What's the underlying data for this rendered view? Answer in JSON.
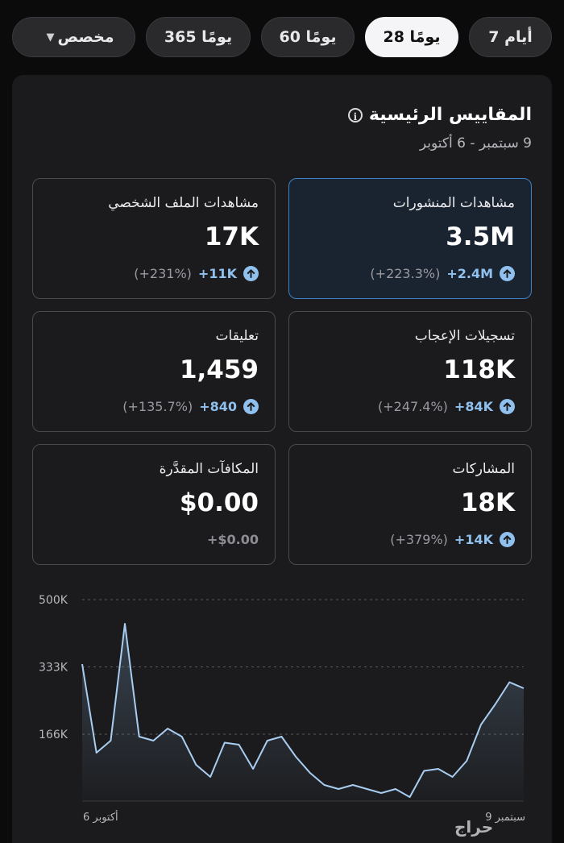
{
  "tabs": [
    {
      "label": "7 أيام",
      "active": false
    },
    {
      "label": "28 يومًا",
      "active": true
    },
    {
      "label": "60 يومًا",
      "active": false
    },
    {
      "label": "365 يومًا",
      "active": false
    },
    {
      "label": "مخصص",
      "active": false,
      "dropdown": true
    }
  ],
  "header": {
    "title": "المقاييس الرئيسية",
    "date_range": "9 سبتمبر - 6 أكتوبر"
  },
  "metrics": {
    "post_views": {
      "label": "مشاهدات المنشورات",
      "value": "3.5M",
      "delta": "+2.4M",
      "pct": "(+223.3%)"
    },
    "profile_views": {
      "label": "مشاهدات الملف الشخصي",
      "value": "17K",
      "delta": "+11K",
      "pct": "(+231%)"
    },
    "likes": {
      "label": "تسجيلات الإعجاب",
      "value": "118K",
      "delta": "+84K",
      "pct": "(+247.4%)"
    },
    "comments": {
      "label": "تعليقات",
      "value": "1,459",
      "delta": "+840",
      "pct": "(+135.7%)"
    },
    "shares": {
      "label": "المشاركات",
      "value": "18K",
      "delta": "+14K",
      "pct": "(+379%)"
    },
    "rewards": {
      "label": "المكافآت المقدَّرة",
      "value": "$0.00",
      "delta": "+$0.00"
    }
  },
  "colors": {
    "accent": "#8fc0ee",
    "selected_border": "#3d82c8",
    "line": "#a8cdf0"
  },
  "chart_data": {
    "type": "area",
    "y_ticks": [
      "500K",
      "333K",
      "166K"
    ],
    "ylim": [
      0,
      500000
    ],
    "x_start_label": "9 سبتمبر",
    "x_end_label": "6 أكتوبر",
    "x_direction": "right-to-left",
    "grid": true,
    "values": [
      340000,
      120000,
      150000,
      440000,
      160000,
      150000,
      180000,
      160000,
      90000,
      60000,
      145000,
      140000,
      80000,
      150000,
      160000,
      110000,
      70000,
      40000,
      30000,
      40000,
      30000,
      20000,
      30000,
      10000,
      75000,
      80000,
      60000,
      100000,
      190000,
      240000,
      295000,
      280000
    ]
  },
  "watermark": "حراج"
}
